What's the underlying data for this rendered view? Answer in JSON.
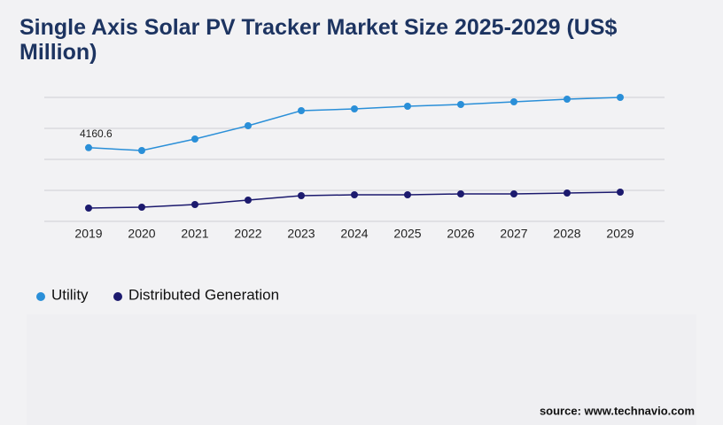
{
  "chart_data": {
    "type": "line",
    "title": "Single Axis Solar PV Tracker Market Size 2025-2029 (US$ Million)",
    "x": [
      "2019",
      "2020",
      "2021",
      "2022",
      "2023",
      "2024",
      "2025",
      "2026",
      "2027",
      "2028",
      "2029"
    ],
    "series": [
      {
        "name": "Utility",
        "color": "#2a8fd8",
        "values": [
          4160.6,
          4000,
          4650,
          5400,
          6250,
          6350,
          6500,
          6600,
          6750,
          6900,
          7000
        ]
      },
      {
        "name": "Distributed Generation",
        "color": "#1c1a6e",
        "values": [
          750,
          800,
          950,
          1200,
          1450,
          1500,
          1500,
          1550,
          1550,
          1600,
          1650
        ]
      }
    ],
    "ylim": [
      0,
      7000
    ],
    "source": "source: www.technavio.com"
  }
}
